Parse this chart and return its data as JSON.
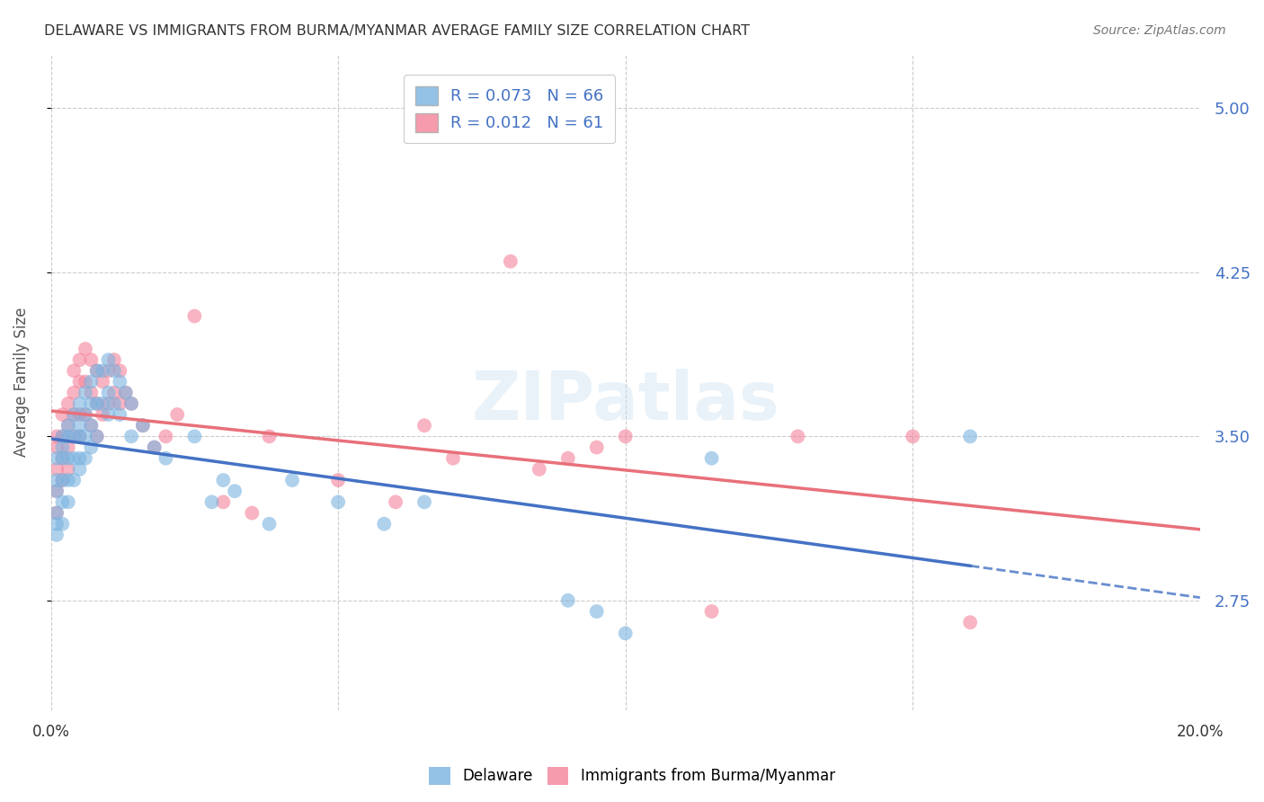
{
  "title": "DELAWARE VS IMMIGRANTS FROM BURMA/MYANMAR AVERAGE FAMILY SIZE CORRELATION CHART",
  "source": "Source: ZipAtlas.com",
  "ylabel": "Average Family Size",
  "yticks": [
    2.75,
    3.5,
    4.25,
    5.0
  ],
  "ytick_labels": [
    "2.75",
    "3.50",
    "4.25",
    "5.00"
  ],
  "xlim": [
    0.0,
    0.2
  ],
  "ylim": [
    2.25,
    5.25
  ],
  "watermark": "ZIPatlas",
  "delaware_color": "#7ab3e0",
  "myanmar_color": "#f4829a",
  "delaware_line_color": "#4472c4",
  "myanmar_line_color": "#e8707a",
  "background_color": "#ffffff",
  "grid_color": "#cccccc",
  "del_R": 0.073,
  "del_N": 66,
  "myan_R": 0.012,
  "myan_N": 61,
  "delaware_x": [
    0.001,
    0.001,
    0.001,
    0.001,
    0.001,
    0.001,
    0.002,
    0.002,
    0.002,
    0.002,
    0.002,
    0.002,
    0.003,
    0.003,
    0.003,
    0.003,
    0.003,
    0.004,
    0.004,
    0.004,
    0.004,
    0.005,
    0.005,
    0.005,
    0.005,
    0.005,
    0.006,
    0.006,
    0.006,
    0.006,
    0.007,
    0.007,
    0.007,
    0.007,
    0.008,
    0.008,
    0.008,
    0.009,
    0.009,
    0.01,
    0.01,
    0.01,
    0.011,
    0.011,
    0.012,
    0.012,
    0.013,
    0.014,
    0.014,
    0.016,
    0.018,
    0.02,
    0.025,
    0.028,
    0.03,
    0.032,
    0.038,
    0.042,
    0.05,
    0.058,
    0.065,
    0.09,
    0.095,
    0.1,
    0.115,
    0.16
  ],
  "delaware_y": [
    3.4,
    3.3,
    3.25,
    3.15,
    3.1,
    3.05,
    3.5,
    3.45,
    3.4,
    3.3,
    3.2,
    3.1,
    3.55,
    3.5,
    3.4,
    3.3,
    3.2,
    3.6,
    3.5,
    3.4,
    3.3,
    3.65,
    3.55,
    3.5,
    3.4,
    3.35,
    3.7,
    3.6,
    3.5,
    3.4,
    3.75,
    3.65,
    3.55,
    3.45,
    3.8,
    3.65,
    3.5,
    3.8,
    3.65,
    3.85,
    3.7,
    3.6,
    3.8,
    3.65,
    3.75,
    3.6,
    3.7,
    3.65,
    3.5,
    3.55,
    3.45,
    3.4,
    3.5,
    3.2,
    3.3,
    3.25,
    3.1,
    3.3,
    3.2,
    3.1,
    3.2,
    2.75,
    2.7,
    2.6,
    3.4,
    3.5
  ],
  "myanmar_x": [
    0.001,
    0.001,
    0.001,
    0.001,
    0.001,
    0.002,
    0.002,
    0.002,
    0.002,
    0.003,
    0.003,
    0.003,
    0.003,
    0.004,
    0.004,
    0.004,
    0.004,
    0.005,
    0.005,
    0.005,
    0.005,
    0.006,
    0.006,
    0.006,
    0.007,
    0.007,
    0.007,
    0.008,
    0.008,
    0.008,
    0.009,
    0.009,
    0.01,
    0.01,
    0.011,
    0.011,
    0.012,
    0.012,
    0.013,
    0.014,
    0.016,
    0.018,
    0.02,
    0.022,
    0.025,
    0.03,
    0.035,
    0.038,
    0.05,
    0.06,
    0.065,
    0.07,
    0.08,
    0.085,
    0.09,
    0.095,
    0.1,
    0.115,
    0.13,
    0.15,
    0.16
  ],
  "myanmar_y": [
    3.5,
    3.45,
    3.35,
    3.25,
    3.15,
    3.6,
    3.5,
    3.4,
    3.3,
    3.65,
    3.55,
    3.45,
    3.35,
    3.8,
    3.7,
    3.6,
    3.5,
    3.85,
    3.75,
    3.6,
    3.5,
    3.9,
    3.75,
    3.6,
    3.85,
    3.7,
    3.55,
    3.8,
    3.65,
    3.5,
    3.75,
    3.6,
    3.8,
    3.65,
    3.85,
    3.7,
    3.8,
    3.65,
    3.7,
    3.65,
    3.55,
    3.45,
    3.5,
    3.6,
    4.05,
    3.2,
    3.15,
    3.5,
    3.3,
    3.2,
    3.55,
    3.4,
    4.3,
    3.35,
    3.4,
    3.45,
    3.5,
    2.7,
    3.5,
    3.5,
    2.65
  ]
}
